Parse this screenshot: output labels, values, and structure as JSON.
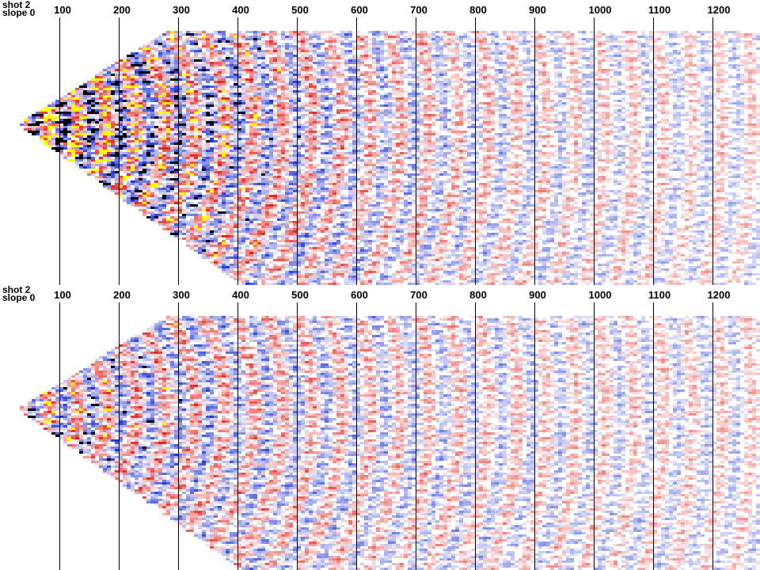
{
  "panels": [
    {
      "id": "top",
      "title_line1": "shot 2",
      "title_line2": "slope 0",
      "ticks": [
        "100",
        "200",
        "300",
        "400",
        "500",
        "600",
        "700",
        "800",
        "900",
        "1000",
        "1100",
        "1200"
      ]
    },
    {
      "id": "bottom",
      "title_line1": "shot 2",
      "title_line2": "slope 0",
      "ticks": [
        "100",
        "200",
        "300",
        "400",
        "500",
        "600",
        "700",
        "800",
        "900",
        "1000",
        "1100",
        "1200"
      ]
    }
  ],
  "colors": {
    "positive": "#e02020",
    "negative": "#2030d0",
    "clip_high": "#ffff00",
    "clip_low": "#000000",
    "background": "#ffffff"
  }
}
